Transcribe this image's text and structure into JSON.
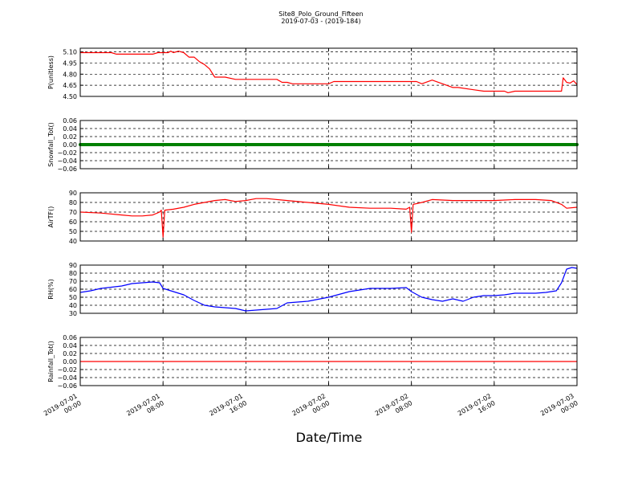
{
  "figure": {
    "title": "Site8_Polo_Ground_Fifteen",
    "subtitle": "2019-07-03 - (2019-184)",
    "xlabel": "Date/Time",
    "x_ticks": [
      {
        "line1": "2019-07-01",
        "line2": "00:00"
      },
      {
        "line1": "2019-07-01",
        "line2": "08:00"
      },
      {
        "line1": "2019-07-01",
        "line2": "16:00"
      },
      {
        "line1": "2019-07-02",
        "line2": "00:00"
      },
      {
        "line1": "2019-07-02",
        "line2": "08:00"
      },
      {
        "line1": "2019-07-02",
        "line2": "16:00"
      },
      {
        "line1": "2019-07-03",
        "line2": "00:00"
      }
    ]
  },
  "chart_data": [
    {
      "type": "line",
      "ylabel": "P(unitless)",
      "ylim": [
        4.5,
        5.15
      ],
      "y_ticks": [
        "5.10",
        "4.95",
        "4.80",
        "4.65",
        "4.50"
      ],
      "y_tick_values": [
        5.1,
        4.95,
        4.8,
        4.65,
        4.5
      ],
      "grid": true,
      "series": [
        {
          "color": "#ff0000",
          "x": [
            "2019-07-01 00:00",
            "2019-07-01 03:00",
            "2019-07-01 03:30",
            "2019-07-01 07:00",
            "2019-07-01 07:30",
            "2019-07-01 08:30",
            "2019-07-01 08:45",
            "2019-07-01 09:00",
            "2019-07-01 09:30",
            "2019-07-01 10:00",
            "2019-07-01 10:30",
            "2019-07-01 11:00",
            "2019-07-01 11:30",
            "2019-07-01 12:00",
            "2019-07-01 12:30",
            "2019-07-01 13:00",
            "2019-07-01 14:00",
            "2019-07-01 15:00",
            "2019-07-01 15:30",
            "2019-07-01 17:00",
            "2019-07-01 19:00",
            "2019-07-01 19:30",
            "2019-07-01 20:00",
            "2019-07-01 20:30",
            "2019-07-01 21:00",
            "2019-07-02 00:00",
            "2019-07-02 00:30",
            "2019-07-02 05:00",
            "2019-07-02 08:00",
            "2019-07-02 08:30",
            "2019-07-02 09:00",
            "2019-07-02 10:00",
            "2019-07-02 11:00",
            "2019-07-02 12:00",
            "2019-07-02 12:30",
            "2019-07-02 14:00",
            "2019-07-02 15:00",
            "2019-07-02 17:00",
            "2019-07-02 17:20",
            "2019-07-02 18:00",
            "2019-07-02 22:30",
            "2019-07-02 22:40",
            "2019-07-02 23:00",
            "2019-07-02 23:20",
            "2019-07-02 23:40",
            "2019-07-03 00:00"
          ],
          "y": [
            5.09,
            5.09,
            5.07,
            5.07,
            5.09,
            5.09,
            5.11,
            5.09,
            5.11,
            5.09,
            5.03,
            5.03,
            4.97,
            4.93,
            4.87,
            4.76,
            4.76,
            4.73,
            4.73,
            4.73,
            4.73,
            4.69,
            4.69,
            4.67,
            4.67,
            4.67,
            4.7,
            4.7,
            4.7,
            4.7,
            4.67,
            4.72,
            4.67,
            4.62,
            4.62,
            4.59,
            4.57,
            4.57,
            4.55,
            4.57,
            4.57,
            4.75,
            4.69,
            4.68,
            4.71,
            4.66
          ]
        }
      ]
    },
    {
      "type": "line",
      "ylabel": "Snowfall_Tot()",
      "ylim": [
        -0.06,
        0.06
      ],
      "y_ticks": [
        "0.06",
        "0.04",
        "0.02",
        "0.00",
        "−0.02",
        "−0.04",
        "−0.06"
      ],
      "y_tick_values": [
        0.06,
        0.04,
        0.02,
        0.0,
        -0.02,
        -0.04,
        -0.06
      ],
      "grid": true,
      "series": [
        {
          "color": "#008000",
          "x": [
            "2019-07-01 00:00",
            "2019-07-03 00:00"
          ],
          "y": [
            0.0,
            0.0
          ]
        }
      ]
    },
    {
      "type": "line",
      "ylabel": "AirTF()",
      "ylim": [
        40,
        90
      ],
      "y_ticks": [
        "90",
        "80",
        "70",
        "60",
        "50",
        "40"
      ],
      "y_tick_values": [
        90,
        80,
        70,
        60,
        50,
        40
      ],
      "grid": true,
      "series": [
        {
          "color": "#ff0000",
          "x": [
            "2019-07-01 00:00",
            "2019-07-01 02:00",
            "2019-07-01 04:00",
            "2019-07-01 05:00",
            "2019-07-01 06:00",
            "2019-07-01 07:00",
            "2019-07-01 07:40",
            "2019-07-01 07:50",
            "2019-07-01 08:00",
            "2019-07-01 08:10",
            "2019-07-01 09:00",
            "2019-07-01 10:00",
            "2019-07-01 11:00",
            "2019-07-01 12:00",
            "2019-07-01 13:00",
            "2019-07-01 14:00",
            "2019-07-01 15:00",
            "2019-07-01 16:00",
            "2019-07-01 17:00",
            "2019-07-01 18:00",
            "2019-07-01 20:00",
            "2019-07-01 22:00",
            "2019-07-02 00:00",
            "2019-07-02 02:00",
            "2019-07-02 04:00",
            "2019-07-02 06:00",
            "2019-07-02 07:30",
            "2019-07-02 07:50",
            "2019-07-02 08:00",
            "2019-07-02 08:10",
            "2019-07-02 09:00",
            "2019-07-02 10:00",
            "2019-07-02 12:00",
            "2019-07-02 14:00",
            "2019-07-02 16:00",
            "2019-07-02 18:00",
            "2019-07-02 20:00",
            "2019-07-02 21:30",
            "2019-07-02 22:30",
            "2019-07-02 23:00",
            "2019-07-03 00:00"
          ],
          "y": [
            70,
            69,
            67,
            66,
            66,
            67,
            70,
            72,
            44,
            72,
            73,
            75,
            78,
            80,
            82,
            83,
            81,
            82,
            84,
            84,
            82,
            80,
            78,
            75,
            74,
            74,
            73,
            75,
            49,
            78,
            80,
            83,
            82,
            82,
            82,
            83,
            83,
            82,
            78,
            74,
            75
          ]
        }
      ]
    },
    {
      "type": "line",
      "ylabel": "RH(%)",
      "ylim": [
        30,
        90
      ],
      "y_ticks": [
        "90",
        "80",
        "70",
        "60",
        "50",
        "40",
        "30"
      ],
      "y_tick_values": [
        90,
        80,
        70,
        60,
        50,
        40,
        30
      ],
      "grid": true,
      "series": [
        {
          "color": "#0000ff",
          "x": [
            "2019-07-01 00:00",
            "2019-07-01 01:00",
            "2019-07-01 02:00",
            "2019-07-01 04:00",
            "2019-07-01 05:00",
            "2019-07-01 07:00",
            "2019-07-01 07:40",
            "2019-07-01 08:00",
            "2019-07-01 09:00",
            "2019-07-01 10:00",
            "2019-07-01 11:00",
            "2019-07-01 12:00",
            "2019-07-01 13:00",
            "2019-07-01 14:00",
            "2019-07-01 15:00",
            "2019-07-01 16:00",
            "2019-07-01 17:00",
            "2019-07-01 18:00",
            "2019-07-01 19:00",
            "2019-07-01 20:00",
            "2019-07-01 21:00",
            "2019-07-01 22:00",
            "2019-07-02 00:00",
            "2019-07-02 02:00",
            "2019-07-02 04:00",
            "2019-07-02 06:00",
            "2019-07-02 07:30",
            "2019-07-02 08:00",
            "2019-07-02 09:00",
            "2019-07-02 10:00",
            "2019-07-02 11:00",
            "2019-07-02 12:00",
            "2019-07-02 13:00",
            "2019-07-02 14:00",
            "2019-07-02 15:00",
            "2019-07-02 16:00",
            "2019-07-02 17:00",
            "2019-07-02 18:00",
            "2019-07-02 20:00",
            "2019-07-02 21:00",
            "2019-07-02 22:00",
            "2019-07-02 22:30",
            "2019-07-02 23:00",
            "2019-07-02 23:30",
            "2019-07-03 00:00"
          ],
          "y": [
            56,
            58,
            61,
            64,
            67,
            69,
            68,
            61,
            57,
            53,
            46,
            40,
            38,
            37,
            36,
            33,
            34,
            35,
            36,
            43,
            44,
            45,
            50,
            57,
            61,
            61,
            62,
            57,
            50,
            47,
            45,
            48,
            45,
            50,
            52,
            52,
            53,
            55,
            55,
            56,
            58,
            68,
            85,
            87,
            86
          ]
        }
      ]
    },
    {
      "type": "line",
      "ylabel": "Rainfall_Tot()",
      "ylim": [
        -0.06,
        0.06
      ],
      "y_ticks": [
        "0.06",
        "0.04",
        "0.02",
        "0.00",
        "−0.02",
        "−0.04",
        "−0.06"
      ],
      "y_tick_values": [
        0.06,
        0.04,
        0.02,
        0.0,
        -0.02,
        -0.04,
        -0.06
      ],
      "grid": true,
      "series": [
        {
          "color": "#ff0000",
          "x": [
            "2019-07-01 00:00",
            "2019-07-03 00:00"
          ],
          "y": [
            0.0,
            0.0
          ]
        }
      ]
    }
  ]
}
